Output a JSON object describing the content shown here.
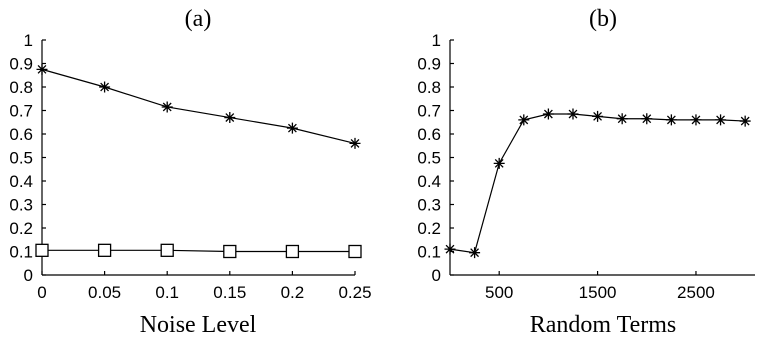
{
  "chart_data": [
    {
      "type": "line",
      "title": "(a)",
      "xlabel": "Noise Level",
      "ylabel": "",
      "xlim": [
        0,
        0.25
      ],
      "ylim": [
        0,
        1
      ],
      "xticks": [
        "0",
        "0.05",
        "0.1",
        "0.15",
        "0.2",
        "0.25"
      ],
      "yticks": [
        "0",
        "0.1",
        "0.2",
        "0.3",
        "0.4",
        "0.5",
        "0.6",
        "0.7",
        "0.8",
        "0.9",
        "1"
      ],
      "x": [
        0,
        0.05,
        0.1,
        0.15,
        0.2,
        0.25
      ],
      "series": [
        {
          "marker": "star",
          "values": [
            0.875,
            0.8,
            0.715,
            0.67,
            0.625,
            0.56
          ]
        },
        {
          "marker": "square",
          "values": [
            0.105,
            0.105,
            0.105,
            0.1,
            0.1,
            0.1
          ]
        }
      ],
      "grid": false
    },
    {
      "type": "line",
      "title": "(b)",
      "xlabel": "Random Terms",
      "ylabel": "",
      "xlim": [
        0,
        3100
      ],
      "ylim": [
        0,
        1
      ],
      "xticks": [
        "500",
        "1500",
        "2500"
      ],
      "yticks": [
        "0",
        "0.1",
        "0.2",
        "0.3",
        "0.4",
        "0.5",
        "0.6",
        "0.7",
        "0.8",
        "0.9",
        "1"
      ],
      "x": [
        0,
        250,
        500,
        750,
        1000,
        1250,
        1500,
        1750,
        2000,
        2250,
        2500,
        2750,
        3000
      ],
      "series": [
        {
          "marker": "star",
          "values": [
            0.11,
            0.095,
            0.475,
            0.66,
            0.685,
            0.685,
            0.675,
            0.665,
            0.665,
            0.66,
            0.66,
            0.66,
            0.655
          ]
        }
      ],
      "grid": false
    }
  ]
}
